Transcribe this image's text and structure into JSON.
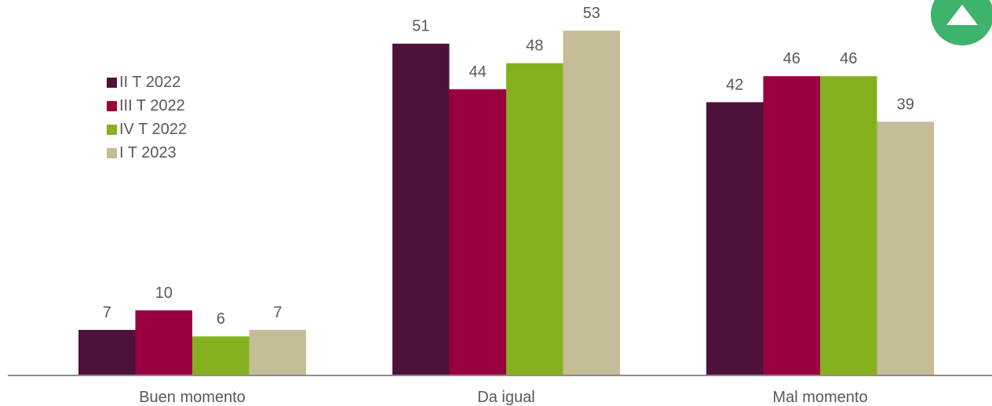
{
  "chart_data": {
    "type": "bar",
    "title": "",
    "xlabel": "",
    "ylabel": "",
    "ylim": [
      0,
      58
    ],
    "grid": false,
    "legend_position": "left",
    "categories": [
      "Buen momento",
      "Da igual",
      "Mal momento"
    ],
    "series": [
      {
        "name": "II T 2022",
        "color": "#4d1239",
        "values": [
          7,
          51,
          42
        ]
      },
      {
        "name": "III T 2022",
        "color": "#990040",
        "values": [
          10,
          44,
          46
        ]
      },
      {
        "name": "IV T 2022",
        "color": "#86b11f",
        "values": [
          6,
          48,
          46
        ]
      },
      {
        "name": "I T 2023",
        "color": "#c5bd97",
        "values": [
          7,
          53,
          39
        ]
      }
    ]
  },
  "colors": {
    "axis": "#8c8c8c",
    "label_text": "#595959",
    "badge": "#3db36b"
  },
  "icons": {
    "badge": "up-triangle-icon"
  }
}
